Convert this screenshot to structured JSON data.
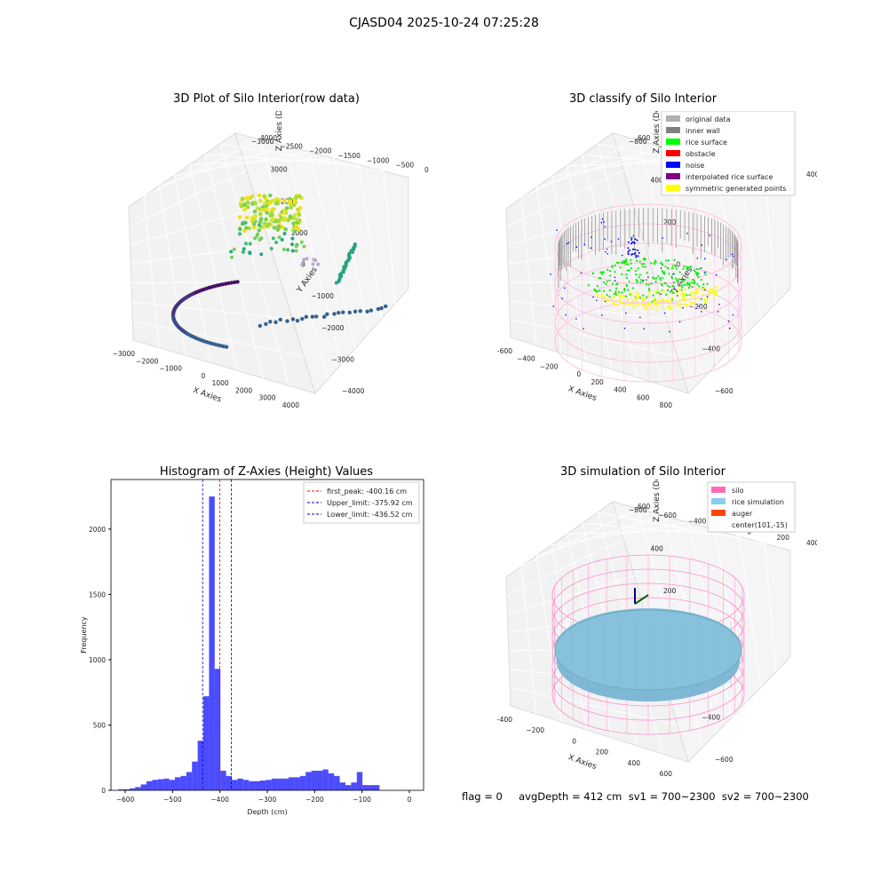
{
  "suptitle": "CJASD04 2025-10-24 07:25:28",
  "panels": {
    "raw": {
      "title": "3D Plot of Silo Interior(row data)",
      "xlabel": "X Axies",
      "ylabel": "Y Axies",
      "zlabel": "Z Axies (Depth)",
      "x_ticks": [
        "−3000",
        "−2000",
        "−1000",
        "0",
        "1000",
        "2000",
        "3000",
        "4000"
      ],
      "y_ticks": [
        "4000",
        "3000",
        "2000",
        "1000",
        "0",
        "−1000",
        "−2000",
        "−3000",
        "−4000"
      ],
      "z_ticks": [
        "0",
        "−500",
        "−1000",
        "−1500",
        "−2000",
        "−2500",
        "−3000"
      ]
    },
    "classify": {
      "title": "3D classify of Silo Interior",
      "xlabel": "X Axies",
      "ylabel": "Y Axies",
      "zlabel": "Z Axies (Depth)",
      "x_ticks": [
        "−600",
        "−400",
        "−200",
        "0",
        "200",
        "400",
        "600",
        "800"
      ],
      "y_ticks": [
        "600",
        "400",
        "200",
        "0",
        "−200",
        "−400",
        "−600"
      ],
      "z_ticks": [
        "400",
        "200",
        "0",
        "−200",
        "−400",
        "−600",
        "−800"
      ],
      "legend": [
        {
          "label": "original data",
          "color": "#b0b0b0"
        },
        {
          "label": "inner wall",
          "color": "#808080"
        },
        {
          "label": "rice surface",
          "color": "#00ff00"
        },
        {
          "label": "obstacle",
          "color": "#ff0000"
        },
        {
          "label": "noise",
          "color": "#0000ff"
        },
        {
          "label": "interpolated rice surface",
          "color": "#800080"
        },
        {
          "label": "symmetric generated points",
          "color": "#ffff00"
        }
      ]
    },
    "simulation": {
      "title": "3D simulation of Silo Interior",
      "xlabel": "X Axies",
      "ylabel": "Y Axies",
      "zlabel": "Z Axies (Depth)",
      "x_ticks": [
        "−400",
        "−200",
        "0",
        "200",
        "400",
        "600"
      ],
      "y_ticks": [
        "600",
        "400",
        "200",
        "0",
        "−200",
        "−400",
        "−600"
      ],
      "z_ticks": [
        "400",
        "200",
        "0",
        "−200",
        "−400",
        "−600",
        "−800"
      ],
      "legend": [
        {
          "label": "silo",
          "color": "#ff69b4"
        },
        {
          "label": "rice simulation",
          "color": "#87ceeb"
        },
        {
          "label": "auger",
          "color": "#ff4500"
        },
        {
          "label": "center(101,-15)",
          "color": ""
        }
      ]
    }
  },
  "chart_data": {
    "type": "bar",
    "title": "Histogram of Z-Axies (Height) Values",
    "xlabel": "Depth (cm)",
    "ylabel": "Frequency",
    "xlim": [
      -630,
      30
    ],
    "ylim": [
      0,
      2380
    ],
    "x_ticks": [
      -600,
      -500,
      -400,
      -300,
      -200,
      -100,
      0
    ],
    "y_ticks": [
      0,
      500,
      1000,
      1500,
      2000
    ],
    "bar_color": "#0000ff",
    "bin_edges": [
      -615,
      -603,
      -591,
      -579,
      -567,
      -555,
      -543,
      -531,
      -519,
      -507,
      -495,
      -483,
      -471,
      -459,
      -447,
      -435,
      -423,
      -411,
      -399,
      -387,
      -375,
      -363,
      -351,
      -339,
      -327,
      -315,
      -303,
      -291,
      -279,
      -267,
      -255,
      -243,
      -231,
      -219,
      -207,
      -195,
      -183,
      -171,
      -159,
      -147,
      -135,
      -123,
      -111,
      -99,
      -87,
      -75,
      -63,
      -51,
      -39,
      -27,
      -15,
      -3
    ],
    "values": [
      8,
      8,
      15,
      25,
      45,
      70,
      80,
      85,
      90,
      80,
      100,
      110,
      140,
      220,
      380,
      720,
      2250,
      930,
      150,
      110,
      80,
      90,
      80,
      70,
      70,
      75,
      80,
      90,
      90,
      90,
      100,
      100,
      110,
      140,
      150,
      150,
      160,
      130,
      110,
      60,
      40,
      60,
      140,
      40,
      40,
      40,
      0,
      0,
      0,
      0,
      0
    ],
    "reference_lines": [
      {
        "label": "first_peak: -400.16 cm",
        "x": -400.16,
        "color": "#ff0000"
      },
      {
        "label": "Upper_limit: -375.92 cm",
        "x": -375.92,
        "color": "#0000aa"
      },
      {
        "label": "Lower_limit: -436.52 cm",
        "x": -436.52,
        "color": "#0000aa"
      }
    ]
  },
  "footer": "flag = 0     avgDepth = 412 cm  sv1 = 700~2300  sv2 = 700~2300"
}
